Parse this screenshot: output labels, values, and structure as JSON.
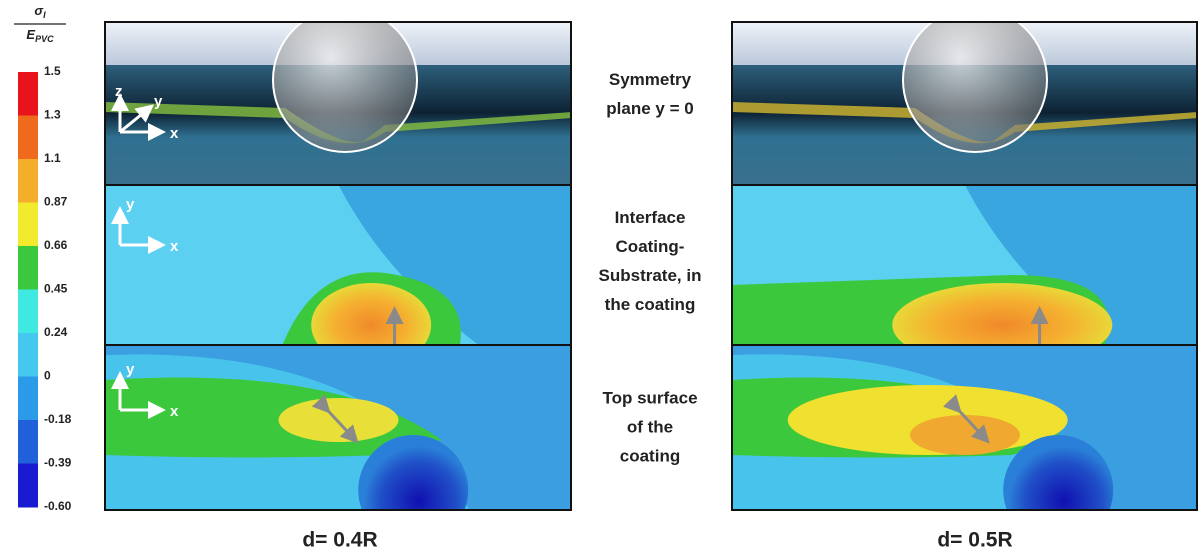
{
  "colorbar": {
    "numerator": {
      "symbol": "σ",
      "subscript": "I"
    },
    "denominator": {
      "symbol": "E",
      "subscript": "PVC"
    },
    "labels": [
      "1.5",
      "1.3",
      "1.1",
      "0.87",
      "0.66",
      "0.45",
      "0.24",
      "0",
      "-0.18",
      "-0.39",
      "-0.60"
    ]
  },
  "axis_triads": [
    [
      "z",
      "y",
      "x"
    ],
    [
      "y",
      "x"
    ],
    [
      "y",
      "x"
    ]
  ],
  "row_labels": [
    [
      "Symmetry",
      "plane  y = 0"
    ],
    [
      "Interface",
      "Coating-",
      "Substrate, in",
      "the coating"
    ],
    [
      "Top surface",
      "of the",
      "coating"
    ]
  ],
  "columns": [
    "d= 0.4R",
    "d= 0.5R"
  ]
}
